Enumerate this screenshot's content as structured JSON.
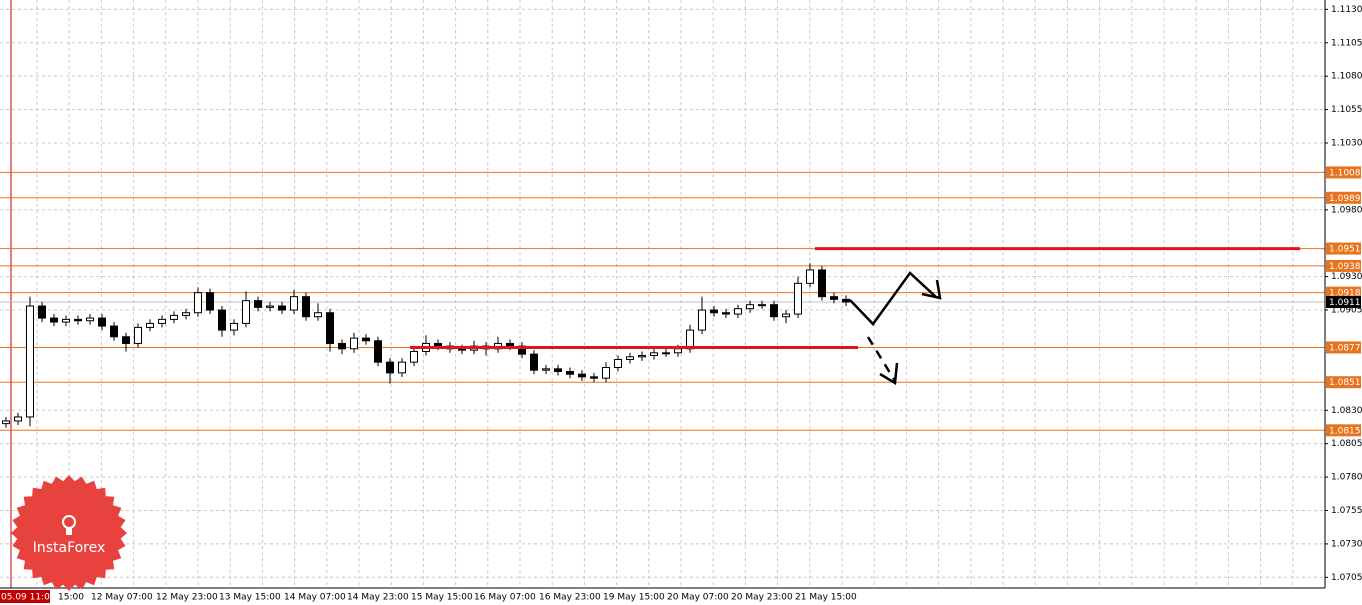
{
  "chart_data": {
    "type": "candlestick",
    "ylim": [
      1.0697,
      1.1137
    ],
    "yticks": [
      {
        "value": 1.113,
        "label": "1.1130"
      },
      1.1105,
      {
        "value": 1.108,
        "label": "1.1080"
      },
      1.1055,
      {
        "value": 1.103,
        "label": "1.1030"
      },
      {
        "value": 1.098,
        "label": "1.0980"
      },
      {
        "value": 1.093,
        "label": "1.0930"
      },
      1.0905,
      {
        "value": 1.083,
        "label": "1.0830"
      },
      1.0805,
      {
        "value": 1.078,
        "label": "1.0780"
      },
      1.0755,
      {
        "value": 1.073,
        "label": "1.0730"
      },
      1.0705
    ],
    "levels": [
      1.1008,
      1.0989,
      1.0951,
      1.0938,
      1.0918,
      1.0877,
      1.0851,
      1.0815
    ],
    "level_color": "#e8731e",
    "last_price": 1.0911,
    "x_labels": [
      "05.09 11:00",
      "15:00",
      "12 May 07:00",
      "12 May 23:00",
      "13 May 15:00",
      "14 May 07:00",
      "14 May 23:00",
      "15 May 15:00",
      "16 May 07:00",
      "16 May 23:00",
      "19 May 15:00",
      "20 May 07:00",
      "20 May 23:00",
      "21 May 15:00"
    ],
    "logo": "InstaForex",
    "grid": true,
    "candles": [
      [
        1.082,
        1.0825,
        1.0817,
        1.0822
      ],
      [
        1.0822,
        1.0828,
        1.0819,
        1.0825
      ],
      [
        1.0825,
        1.0915,
        1.0818,
        1.0908
      ],
      [
        1.0908,
        1.0911,
        1.0896,
        1.0899
      ],
      [
        1.0899,
        1.0902,
        1.0893,
        1.0896
      ],
      [
        1.0896,
        1.0901,
        1.0893,
        1.0898
      ],
      [
        1.0898,
        1.0901,
        1.0894,
        1.0897
      ],
      [
        1.0897,
        1.0902,
        1.0894,
        1.0899
      ],
      [
        1.0899,
        1.0902,
        1.089,
        1.0893
      ],
      [
        1.0893,
        1.0896,
        1.0882,
        1.0885
      ],
      [
        1.0885,
        1.0888,
        1.0874,
        1.088
      ],
      [
        1.088,
        1.0895,
        1.0877,
        1.0892
      ],
      [
        1.0892,
        1.0898,
        1.0889,
        1.0895
      ],
      [
        1.0895,
        1.0901,
        1.0892,
        1.0898
      ],
      [
        1.0898,
        1.0904,
        1.0895,
        1.0901
      ],
      [
        1.0901,
        1.0906,
        1.0898,
        1.0903
      ],
      [
        1.0903,
        1.0922,
        1.09,
        1.0918
      ],
      [
        1.0918,
        1.0921,
        1.0902,
        1.0905
      ],
      [
        1.0905,
        1.0908,
        1.0885,
        1.089
      ],
      [
        1.089,
        1.0898,
        1.0886,
        1.0895
      ],
      [
        1.0895,
        1.0919,
        1.0892,
        1.0912
      ],
      [
        1.0912,
        1.0915,
        1.0904,
        1.0907
      ],
      [
        1.0907,
        1.0911,
        1.0904,
        1.0908
      ],
      [
        1.0908,
        1.0911,
        1.0902,
        1.0905
      ],
      [
        1.0905,
        1.092,
        1.0902,
        1.0915
      ],
      [
        1.0915,
        1.0918,
        1.0897,
        1.09
      ],
      [
        1.09,
        1.091,
        1.0897,
        1.0903
      ],
      [
        1.0903,
        1.0906,
        1.0874,
        1.088
      ],
      [
        1.088,
        1.0883,
        1.0872,
        1.0876
      ],
      [
        1.0876,
        1.0888,
        1.0873,
        1.0884
      ],
      [
        1.0884,
        1.0887,
        1.0879,
        1.0882
      ],
      [
        1.0882,
        1.0885,
        1.0863,
        1.0866
      ],
      [
        1.0866,
        1.0869,
        1.085,
        1.0858
      ],
      [
        1.0858,
        1.0869,
        1.0855,
        1.0866
      ],
      [
        1.0866,
        1.0877,
        1.0863,
        1.0874
      ],
      [
        1.0874,
        1.0886,
        1.0871,
        1.088
      ],
      [
        1.088,
        1.0883,
        1.0875,
        1.0878
      ],
      [
        1.0878,
        1.0881,
        1.0873,
        1.0876
      ],
      [
        1.0876,
        1.0879,
        1.0872,
        1.0875
      ],
      [
        1.0875,
        1.0882,
        1.0872,
        1.0878
      ],
      [
        1.0878,
        1.0881,
        1.0871,
        1.0876
      ],
      [
        1.0876,
        1.0885,
        1.0873,
        1.088
      ],
      [
        1.088,
        1.0883,
        1.0875,
        1.0878
      ],
      [
        1.0878,
        1.0881,
        1.0869,
        1.0872
      ],
      [
        1.0872,
        1.0875,
        1.0857,
        1.086
      ],
      [
        1.086,
        1.0864,
        1.0857,
        1.0861
      ],
      [
        1.0861,
        1.0864,
        1.0856,
        1.0859
      ],
      [
        1.0859,
        1.0862,
        1.0854,
        1.0857
      ],
      [
        1.0857,
        1.086,
        1.0852,
        1.0855
      ],
      [
        1.0855,
        1.0858,
        1.0851,
        1.0854
      ],
      [
        1.0854,
        1.0866,
        1.0851,
        1.0862
      ],
      [
        1.0862,
        1.0871,
        1.0859,
        1.0868
      ],
      [
        1.0868,
        1.0873,
        1.0865,
        1.087
      ],
      [
        1.087,
        1.0874,
        1.0867,
        1.0871
      ],
      [
        1.0871,
        1.0876,
        1.0868,
        1.0873
      ],
      [
        1.0873,
        1.0876,
        1.087,
        1.0873
      ],
      [
        1.0873,
        1.0879,
        1.087,
        1.0876
      ],
      [
        1.0876,
        1.0894,
        1.0873,
        1.089
      ],
      [
        1.089,
        1.0915,
        1.0887,
        1.0905
      ],
      [
        1.0905,
        1.0908,
        1.09,
        1.0903
      ],
      [
        1.0903,
        1.0906,
        1.0899,
        1.0902
      ],
      [
        1.0902,
        1.0909,
        1.0899,
        1.0906
      ],
      [
        1.0906,
        1.0912,
        1.0903,
        1.0909
      ],
      [
        1.0909,
        1.0912,
        1.0906,
        1.0909
      ],
      [
        1.0909,
        1.0912,
        1.0897,
        1.09
      ],
      [
        1.09,
        1.0905,
        1.0895,
        1.0902
      ],
      [
        1.0902,
        1.093,
        1.0899,
        1.0925
      ],
      [
        1.0925,
        1.094,
        1.0922,
        1.0935
      ],
      [
        1.0935,
        1.0938,
        1.0912,
        1.0915
      ],
      [
        1.0915,
        1.0918,
        1.091,
        1.0913
      ],
      [
        1.0913,
        1.0916,
        1.0908,
        1.0911
      ]
    ]
  }
}
